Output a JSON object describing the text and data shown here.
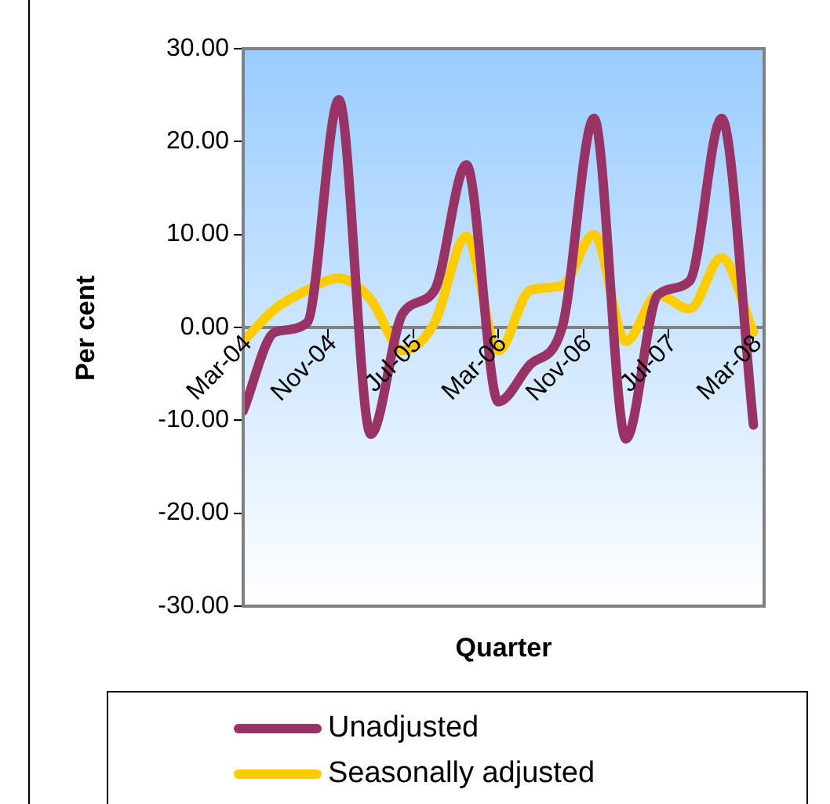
{
  "chart_data": {
    "type": "line",
    "xlabel": "Quarter",
    "ylabel": "Per cent",
    "x": [
      "2004-03",
      "2004-06",
      "2004-09",
      "2004-12",
      "2005-03",
      "2005-06",
      "2005-09",
      "2005-12",
      "2006-03",
      "2006-06",
      "2006-09",
      "2006-12",
      "2007-03",
      "2007-06",
      "2007-09",
      "2007-12",
      "2008-03"
    ],
    "series": [
      {
        "name": "Unadjusted",
        "color": "#993366",
        "values": [
          -9,
          -0.5,
          0.5,
          24.5,
          -11.5,
          1.5,
          4,
          17.5,
          -8,
          -4,
          0,
          22.5,
          -12,
          3.5,
          5,
          22.5,
          -10.5
        ]
      },
      {
        "name": "Seasonally adjusted",
        "color": "#ffcc00",
        "values": [
          -1.5,
          2,
          4,
          5.3,
          3,
          -2.5,
          0.5,
          9.8,
          -2.5,
          4,
          4.5,
          10,
          -1.5,
          3.5,
          2,
          7.5,
          -0.5
        ]
      }
    ],
    "xlim": [
      "2004-03",
      "2008-04"
    ],
    "xticks": [
      {
        "value": "2004-03",
        "label": "Mar-04"
      },
      {
        "value": "2004-11",
        "label": "Nov-04"
      },
      {
        "value": "2005-07",
        "label": "Jul-05"
      },
      {
        "value": "2006-03",
        "label": "Mar-06"
      },
      {
        "value": "2006-11",
        "label": "Nov-06"
      },
      {
        "value": "2007-07",
        "label": "Jul-07"
      },
      {
        "value": "2008-03",
        "label": "Mar-08"
      }
    ],
    "ylim": [
      -30,
      30
    ],
    "yticks": [
      {
        "value": -30,
        "label": "-30.00"
      },
      {
        "value": -20,
        "label": "-20.00"
      },
      {
        "value": -10,
        "label": "-10.00"
      },
      {
        "value": 0,
        "label": "0.00"
      },
      {
        "value": 10,
        "label": "10.00"
      },
      {
        "value": 20,
        "label": "20.00"
      },
      {
        "value": 30,
        "label": "30.00"
      }
    ],
    "grid": false,
    "legend": "bottom",
    "marker": "none",
    "line_style": "solid"
  }
}
